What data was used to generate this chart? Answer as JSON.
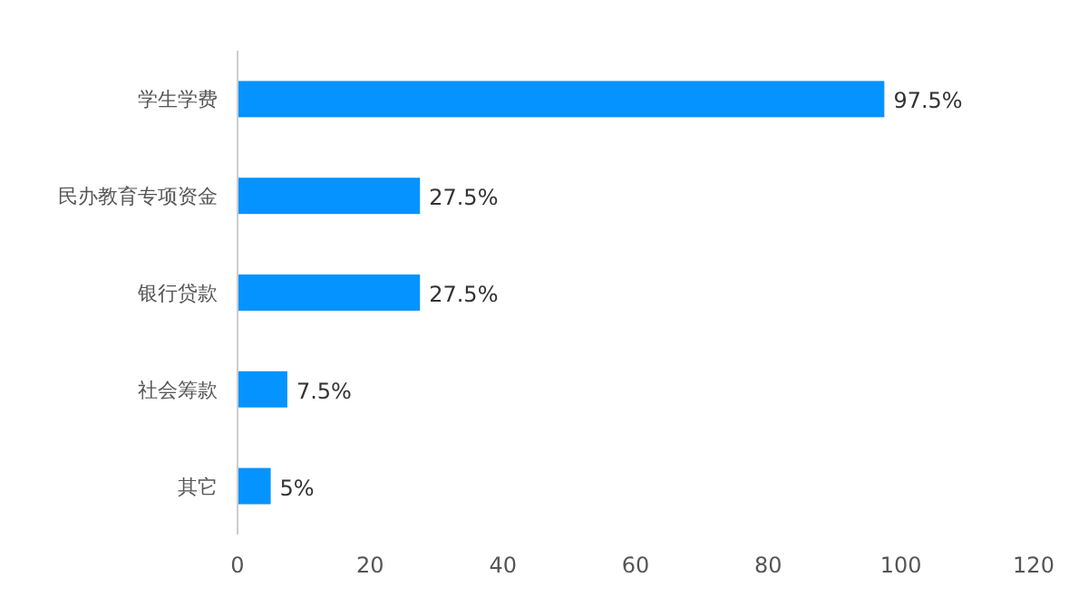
{
  "chart_data": {
    "type": "bar",
    "orientation": "horizontal",
    "categories": [
      "学生学费",
      "民办教育专项资金",
      "银行贷款",
      "社会筹款",
      "其它"
    ],
    "values": [
      97.5,
      27.5,
      27.5,
      7.5,
      5
    ],
    "value_labels": [
      "97.5%",
      "27.5%",
      "27.5%",
      "7.5%",
      "5%"
    ],
    "color": "#0593ff",
    "xlim": [
      0,
      120
    ],
    "xticks": [
      0,
      20,
      40,
      60,
      80,
      100,
      120
    ],
    "grid": false
  }
}
